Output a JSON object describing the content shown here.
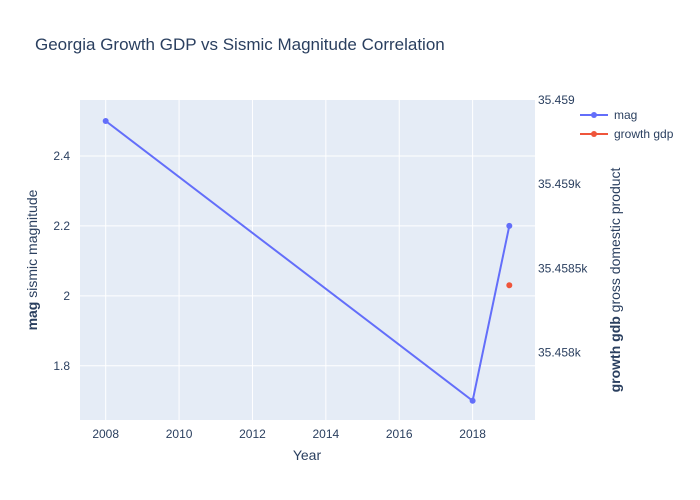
{
  "chart_data": {
    "type": "line",
    "title": "Georgia Growth GDP vs Sismic Magnitude Correlation",
    "xlabel": "Year",
    "ylabel_bold": "mag",
    "ylabel_rest": " sismic magnitude",
    "y2label_bold": "growth gdb",
    "y2label_rest": " gross domestic product",
    "xlim": [
      2007.3,
      2019.7
    ],
    "ylim": [
      1.645,
      2.56
    ],
    "y2lim": [
      35457.6,
      35459.5
    ],
    "x_ticks": [
      2008,
      2010,
      2012,
      2014,
      2016,
      2018
    ],
    "y_ticks": [
      1.8,
      2,
      2.2,
      2.4
    ],
    "y_tick_labels": [
      "1.8",
      "2",
      "2.2",
      "2.4"
    ],
    "y2_ticks": [
      35458,
      35458.5,
      35459,
      35459.5
    ],
    "y2_tick_labels": [
      "35.458k",
      "35.4585k",
      "35.459k",
      "35.459"
    ],
    "grid": true,
    "legend_position": "top-right",
    "series": [
      {
        "name": "mag",
        "axis": "y",
        "color": "#636efa",
        "x": [
          2008,
          2018,
          2019
        ],
        "y": [
          2.5,
          1.7,
          2.2
        ]
      },
      {
        "name": "growth gdp",
        "axis": "y2",
        "color": "#ef553b",
        "x": [
          2019
        ],
        "y": [
          35458.4
        ]
      }
    ]
  }
}
